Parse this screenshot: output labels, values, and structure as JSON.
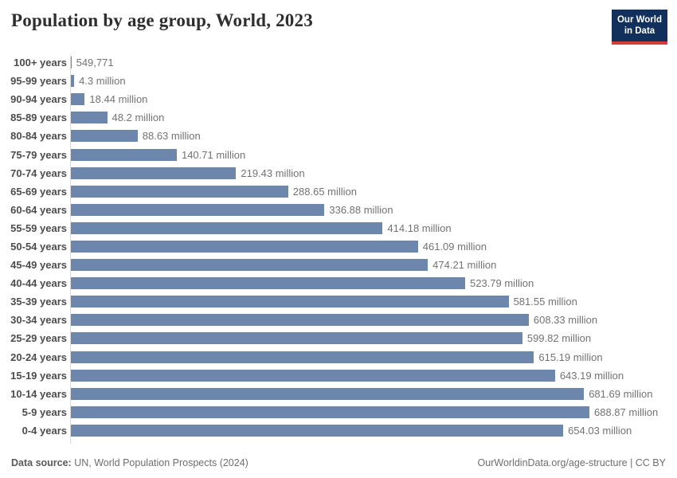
{
  "header": {
    "title": "Population by age group, World, 2023",
    "logo": {
      "line1": "Our World",
      "line2": "in Data"
    }
  },
  "chart_data": {
    "type": "bar",
    "orientation": "horizontal",
    "title": "Population by age group, World, 2023",
    "unit": "people",
    "categories": [
      "100+ years",
      "95-99 years",
      "90-94 years",
      "85-89 years",
      "80-84 years",
      "75-79 years",
      "70-74 years",
      "65-69 years",
      "60-64 years",
      "55-59 years",
      "50-54 years",
      "45-49 years",
      "40-44 years",
      "35-39 years",
      "30-34 years",
      "25-29 years",
      "20-24 years",
      "15-19 years",
      "10-14 years",
      "5-9 years",
      "0-4 years"
    ],
    "values_millions": [
      0.549771,
      4.3,
      18.44,
      48.2,
      88.63,
      140.71,
      219.43,
      288.65,
      336.88,
      414.18,
      461.09,
      474.21,
      523.79,
      581.55,
      608.33,
      599.82,
      615.19,
      643.19,
      681.69,
      688.87,
      654.03
    ],
    "value_labels": [
      "549,771",
      "4.3 million",
      "18.44 million",
      "48.2 million",
      "88.63 million",
      "140.71 million",
      "219.43 million",
      "288.65 million",
      "336.88 million",
      "414.18 million",
      "461.09 million",
      "474.21 million",
      "523.79 million",
      "581.55 million",
      "608.33 million",
      "599.82 million",
      "615.19 million",
      "643.19 million",
      "681.69 million",
      "688.87 million",
      "654.03 million"
    ],
    "bar_color": "#6d86ac",
    "xlim_millions": [
      0,
      730
    ],
    "grid": false,
    "legend": "none"
  },
  "footer": {
    "datasource_label": "Data source:",
    "datasource_value": " UN, World Population Prospects (2024)",
    "citation": "OurWorldinData.org/age-structure | CC BY"
  },
  "colors": {
    "bar": "#6d86ac",
    "logo_bg": "#12305c",
    "logo_red": "#d93a3a",
    "axis": "#d9d9d9"
  }
}
